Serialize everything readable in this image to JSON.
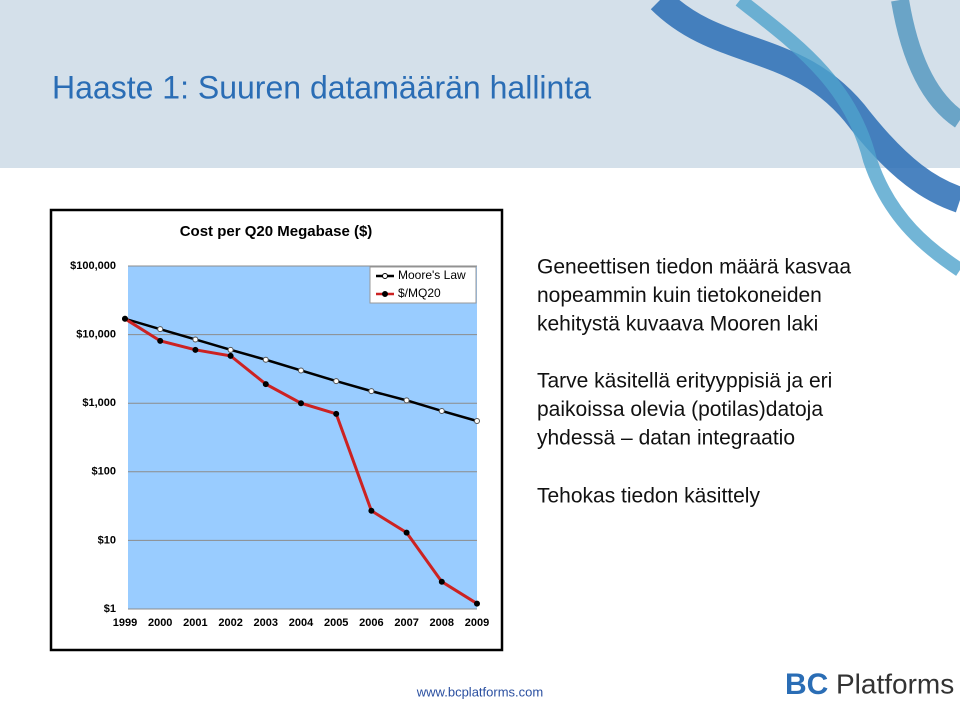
{
  "title": "Haaste 1: Suuren datamäärän hallinta",
  "bullets": [
    [
      "Geneettisen tiedon määrä kasvaa",
      "nopeammin kuin tietokoneiden",
      "kehitystä kuvaava Mooren laki"
    ],
    [
      "Tarve käsitellä erityyppisiä ja eri",
      "paikoissa olevia (potilas)datoja",
      "yhdessä – datan integraatio"
    ],
    [
      "Tehokas tiedon käsittely"
    ]
  ],
  "footer": "www.bcplatforms.com",
  "logo": {
    "mark": "BC",
    "name": "Platforms"
  },
  "chart_data": {
    "type": "line",
    "title": "Cost per Q20 Megabase ($)",
    "x": [
      1999,
      2000,
      2001,
      2002,
      2003,
      2004,
      2005,
      2006,
      2007,
      2008,
      2009
    ],
    "xlim": [
      1999,
      2009
    ],
    "xticks": [
      1999,
      2000,
      2001,
      2002,
      2003,
      2004,
      2005,
      2006,
      2007,
      2008,
      2009
    ],
    "ylim": [
      1,
      100000
    ],
    "log_scale": true,
    "grid": true,
    "legend": "top-right",
    "yticks": [
      {
        "value": 1,
        "label": "$1"
      },
      {
        "value": 10,
        "label": "$10"
      },
      {
        "value": 100,
        "label": "$100"
      },
      {
        "value": 1000,
        "label": "$1,000"
      },
      {
        "value": 10000,
        "label": "$10,000"
      },
      {
        "value": 100000,
        "label": "$100,000"
      }
    ],
    "series": [
      {
        "name": "Moore's Law",
        "color": "#000000",
        "values": [
          17000,
          12000,
          8500,
          6000,
          4300,
          3000,
          2100,
          1500,
          1100,
          770,
          550
        ]
      },
      {
        "name": "$/MQ20",
        "color": "#cc2222",
        "values": [
          17000,
          8100,
          6000,
          4900,
          1900,
          1000,
          700,
          27,
          13,
          2.5,
          1.2
        ]
      }
    ]
  }
}
